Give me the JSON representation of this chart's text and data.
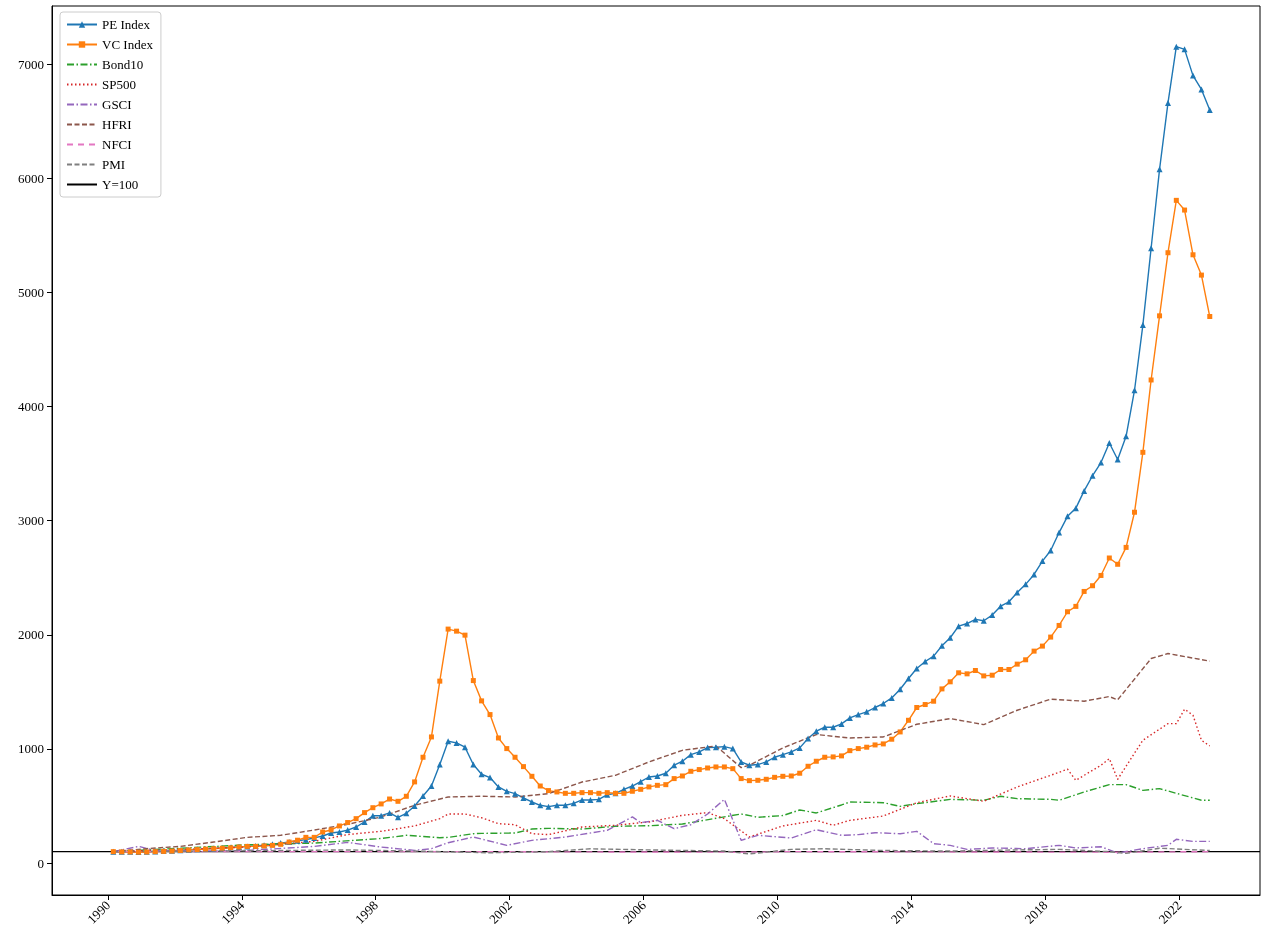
{
  "chart_data": {
    "type": "line",
    "legend": "top left",
    "grid": false,
    "xlim": [
      "1988-05",
      "2024-06"
    ],
    "xticks": [
      "1990",
      "1994",
      "1998",
      "2002",
      "2006",
      "2010",
      "2014",
      "2018",
      "2022"
    ],
    "ylim": [
      -280,
      7510
    ],
    "yticks": [
      0,
      1000,
      2000,
      3000,
      4000,
      5000,
      6000,
      7000
    ],
    "x": [
      "1990-03",
      "1990-06",
      "1990-09",
      "1990-12",
      "1991-03",
      "1991-06",
      "1991-09",
      "1991-12",
      "1992-03",
      "1992-06",
      "1992-09",
      "1992-12",
      "1993-03",
      "1993-06",
      "1993-09",
      "1993-12",
      "1994-03",
      "1994-06",
      "1994-09",
      "1994-12",
      "1995-03",
      "1995-06",
      "1995-09",
      "1995-12",
      "1996-03",
      "1996-06",
      "1996-09",
      "1996-12",
      "1997-03",
      "1997-06",
      "1997-09",
      "1997-12",
      "1998-03",
      "1998-06",
      "1998-09",
      "1998-12",
      "1999-03",
      "1999-06",
      "1999-09",
      "1999-12",
      "2000-03",
      "2000-06",
      "2000-09",
      "2000-12",
      "2001-03",
      "2001-06",
      "2001-09",
      "2001-12",
      "2002-03",
      "2002-06",
      "2002-09",
      "2002-12",
      "2003-03",
      "2003-06",
      "2003-09",
      "2003-12",
      "2004-03",
      "2004-06",
      "2004-09",
      "2004-12",
      "2005-03",
      "2005-06",
      "2005-09",
      "2005-12",
      "2006-03",
      "2006-06",
      "2006-09",
      "2006-12",
      "2007-03",
      "2007-06",
      "2007-09",
      "2007-12",
      "2008-03",
      "2008-06",
      "2008-09",
      "2008-12",
      "2009-03",
      "2009-06",
      "2009-09",
      "2009-12",
      "2010-03",
      "2010-06",
      "2010-09",
      "2010-12",
      "2011-03",
      "2011-06",
      "2011-09",
      "2011-12",
      "2012-03",
      "2012-06",
      "2012-09",
      "2012-12",
      "2013-03",
      "2013-06",
      "2013-09",
      "2013-12",
      "2014-03",
      "2014-06",
      "2014-09",
      "2014-12",
      "2015-03",
      "2015-06",
      "2015-09",
      "2015-12",
      "2016-03",
      "2016-06",
      "2016-09",
      "2016-12",
      "2017-03",
      "2017-06",
      "2017-09",
      "2017-12",
      "2018-03",
      "2018-06",
      "2018-09",
      "2018-12",
      "2019-03",
      "2019-06",
      "2019-09",
      "2019-12",
      "2020-03",
      "2020-06",
      "2020-09",
      "2020-12",
      "2021-03",
      "2021-06",
      "2021-09",
      "2021-12",
      "2022-03",
      "2022-06",
      "2022-09",
      "2022-12"
    ],
    "series": [
      {
        "name": "PE Index",
        "color": "#1f77b4",
        "marker": "triangle",
        "line_style": "solid",
        "values": [
          100,
          99,
          98,
          97,
          99,
          102,
          105,
          108,
          112,
          116,
          120,
          124,
          128,
          132,
          136,
          140,
          145,
          150,
          156,
          165,
          175,
          185,
          195,
          205,
          220,
          237,
          263,
          272,
          289,
          316,
          360,
          415,
          415,
          439,
          401,
          436,
          500,
          588,
          675,
          863,
          1067,
          1053,
          1015,
          863,
          778,
          749,
          667,
          629,
          608,
          570,
          535,
          506,
          494,
          506,
          506,
          523,
          553,
          553,
          558,
          599,
          611,
          646,
          675,
          713,
          754,
          763,
          787,
          857,
          892,
          950,
          974,
          1012,
          1015,
          1020,
          1003,
          886,
          857,
          863,
          886,
          927,
          950,
          974,
          1009,
          1091,
          1155,
          1190,
          1190,
          1219,
          1272,
          1301,
          1325,
          1363,
          1398,
          1447,
          1523,
          1617,
          1705,
          1766,
          1813,
          1904,
          1974,
          2076,
          2099,
          2135,
          2123,
          2173,
          2251,
          2289,
          2371,
          2442,
          2529,
          2646,
          2739,
          2896,
          3038,
          3110,
          3261,
          3394,
          3509,
          3681,
          3536,
          3739,
          4143,
          4714,
          5387,
          6079,
          6661,
          7154,
          7130,
          6900,
          6779,
          6598
        ]
      },
      {
        "name": "VC Index",
        "color": "#ff7f0e",
        "marker": "square",
        "line_style": "solid",
        "values": [
          100,
          98,
          97,
          95,
          97,
          100,
          102,
          105,
          110,
          115,
          118,
          122,
          126,
          130,
          134,
          140,
          146,
          146,
          150,
          155,
          164,
          184,
          200,
          225,
          225,
          272,
          290,
          325,
          355,
          389,
          442,
          485,
          518,
          561,
          541,
          585,
          711,
          927,
          1105,
          1594,
          2050,
          2032,
          1997,
          1599,
          1421,
          1301,
          1096,
          1003,
          927,
          845,
          760,
          675,
          635,
          623,
          611,
          611,
          617,
          617,
          611,
          617,
          611,
          611,
          629,
          646,
          667,
          681,
          687,
          740,
          763,
          804,
          819,
          833,
          842,
          842,
          827,
          740,
          722,
          725,
          734,
          751,
          760,
          763,
          787,
          848,
          892,
          927,
          930,
          939,
          985,
          1003,
          1015,
          1035,
          1044,
          1085,
          1149,
          1251,
          1363,
          1389,
          1418,
          1526,
          1588,
          1667,
          1658,
          1687,
          1640,
          1646,
          1696,
          1696,
          1743,
          1781,
          1857,
          1901,
          1980,
          2082,
          2202,
          2249,
          2380,
          2430,
          2520,
          2673,
          2618,
          2766,
          3074,
          3599,
          4233,
          4795,
          5348,
          5807,
          5722,
          5330,
          5152,
          4789
        ]
      },
      {
        "name": "Bond10",
        "color": "#2ca02c",
        "marker": "none",
        "line_style": "dashdot",
        "x": [
          "1990-03",
          "1992-03",
          "1994-03",
          "1996-03",
          "1998-03",
          "1998-12",
          "1999-12",
          "2000-03",
          "2000-12",
          "2001-03",
          "2002-03",
          "2002-09",
          "2003-03",
          "2004-03",
          "2005-03",
          "2006-03",
          "2007-03",
          "2008-03",
          "2008-12",
          "2009-06",
          "2010-03",
          "2010-09",
          "2011-03",
          "2011-12",
          "2012-03",
          "2013-03",
          "2013-09",
          "2014-03",
          "2015-03",
          "2016-03",
          "2016-09",
          "2017-03",
          "2018-03",
          "2018-06",
          "2019-03",
          "2019-12",
          "2020-06",
          "2020-12",
          "2021-06",
          "2022-09",
          "2022-12"
        ],
        "values": [
          100,
          130,
          160,
          175,
          215,
          243,
          222,
          225,
          257,
          260,
          263,
          298,
          304,
          298,
          322,
          327,
          342,
          392,
          430,
          401,
          416,
          465,
          439,
          509,
          535,
          529,
          497,
          520,
          558,
          550,
          585,
          564,
          558,
          550,
          623,
          687,
          687,
          637,
          652,
          550,
          550
        ]
      },
      {
        "name": "SP500",
        "color": "#d62728",
        "marker": "none",
        "line_style": "dotted",
        "x": [
          "1990-03",
          "1992-03",
          "1994-03",
          "1996-03",
          "1997-03",
          "1998-03",
          "1999-03",
          "1999-12",
          "2000-03",
          "2000-09",
          "2001-03",
          "2001-09",
          "2002-03",
          "2002-09",
          "2003-03",
          "2004-03",
          "2005-03",
          "2006-03",
          "2007-03",
          "2007-12",
          "2008-06",
          "2009-03",
          "2010-03",
          "2011-03",
          "2011-09",
          "2012-03",
          "2013-03",
          "2014-03",
          "2015-03",
          "2016-03",
          "2017-03",
          "2018-03",
          "2018-09",
          "2018-12",
          "2019-09",
          "2019-12",
          "2020-03",
          "2020-12",
          "2021-09",
          "2021-12",
          "2022-03",
          "2022-06",
          "2022-09",
          "2022-12"
        ],
        "values": [
          100,
          120,
          140,
          190,
          250,
          278,
          325,
          389,
          430,
          430,
          397,
          345,
          336,
          257,
          249,
          316,
          331,
          360,
          418,
          442,
          389,
          228,
          325,
          374,
          331,
          374,
          412,
          529,
          588,
          541,
          667,
          769,
          822,
          725,
          857,
          915,
          734,
          1076,
          1222,
          1222,
          1348,
          1295,
          1076,
          1026
        ]
      },
      {
        "name": "GSCI",
        "color": "#9467bd",
        "marker": "none",
        "line_style": "dashdot",
        "x": [
          "1990-03",
          "1990-12",
          "1991-06",
          "1993-03",
          "1994-03",
          "1996-03",
          "1997-03",
          "1998-03",
          "1999-03",
          "1999-09",
          "2000-03",
          "2000-12",
          "2001-12",
          "2002-09",
          "2003-09",
          "2004-12",
          "2005-09",
          "2005-12",
          "2006-06",
          "2006-12",
          "2007-06",
          "2007-12",
          "2008-06",
          "2008-12",
          "2009-06",
          "2010-06",
          "2011-03",
          "2011-12",
          "2012-06",
          "2012-12",
          "2013-09",
          "2014-03",
          "2014-09",
          "2015-03",
          "2015-09",
          "2016-06",
          "2017-06",
          "2018-06",
          "2018-12",
          "2019-09",
          "2020-03",
          "2020-12",
          "2021-09",
          "2021-12",
          "2022-06",
          "2022-12"
        ],
        "values": [
          100,
          146,
          110,
          105,
          110,
          146,
          181,
          140,
          111,
          126,
          178,
          228,
          155,
          199,
          228,
          287,
          404,
          354,
          374,
          301,
          336,
          430,
          558,
          199,
          243,
          219,
          292,
          243,
          249,
          266,
          257,
          278,
          170,
          155,
          120,
          132,
          126,
          155,
          132,
          143,
          88,
          126,
          155,
          208,
          190,
          190
        ]
      },
      {
        "name": "HFRI",
        "color": "#8c564b",
        "marker": "none",
        "line_style": "dashed",
        "x": [
          "1990-03",
          "1991-03",
          "1992-03",
          "1993-03",
          "1994-03",
          "1995-03",
          "1996-03",
          "1997-03",
          "1998-03",
          "1999-03",
          "2000-03",
          "2001-03",
          "2002-03",
          "2003-03",
          "2004-03",
          "2005-03",
          "2006-03",
          "2007-03",
          "2008-03",
          "2008-12",
          "2009-03",
          "2010-03",
          "2011-03",
          "2012-03",
          "2013-03",
          "2014-03",
          "2015-03",
          "2016-03",
          "2017-03",
          "2018-03",
          "2019-03",
          "2019-12",
          "2020-03",
          "2021-03",
          "2021-09",
          "2022-12"
        ],
        "values": [
          100,
          126,
          146,
          184,
          225,
          243,
          289,
          339,
          404,
          506,
          579,
          585,
          579,
          608,
          710,
          769,
          886,
          988,
          1026,
          836,
          857,
          1009,
          1126,
          1096,
          1105,
          1216,
          1266,
          1213,
          1339,
          1436,
          1418,
          1459,
          1430,
          1792,
          1836,
          1769
        ]
      },
      {
        "name": "NFCI",
        "color": "#e377c2",
        "marker": "none",
        "line_style": "loosedash",
        "x": [
          "1990-03",
          "2000-03",
          "2008-12",
          "2010-03",
          "2020-03",
          "2022-12"
        ],
        "values": [
          100,
          100,
          95,
          100,
          95,
          100
        ]
      },
      {
        "name": "PMI",
        "color": "#7f7f7f",
        "marker": "none",
        "line_style": "dashed",
        "x": [
          "1990-03",
          "1993-03",
          "1995-03",
          "1997-03",
          "1999-03",
          "2001-06",
          "2003-03",
          "2004-06",
          "2006-03",
          "2008-06",
          "2009-03",
          "2010-06",
          "2011-06",
          "2013-03",
          "2015-03",
          "2017-03",
          "2018-06",
          "2019-12",
          "2020-06",
          "2021-06",
          "2022-12"
        ],
        "values": [
          100,
          105,
          110,
          115,
          105,
          90,
          100,
          125,
          115,
          105,
          80,
          120,
          125,
          110,
          105,
          115,
          120,
          100,
          85,
          130,
          110
        ]
      }
    ],
    "ref_lines": [
      {
        "axis": "y",
        "value": 100,
        "label": "Y=100",
        "color": "#000000"
      }
    ]
  }
}
